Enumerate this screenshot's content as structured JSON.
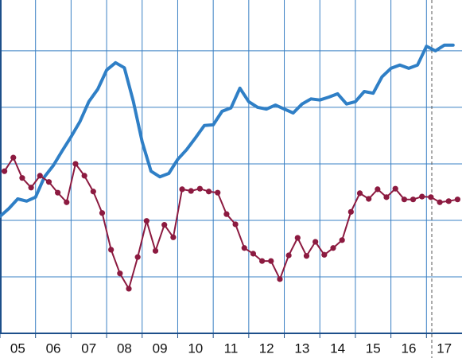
{
  "chart_data": {
    "type": "line",
    "xlim": [
      2005,
      2018
    ],
    "ylim": [
      0,
      5.9
    ],
    "yticks": [
      1,
      2,
      3,
      4,
      5
    ],
    "xticks": [
      {
        "value": 2005,
        "label": "05"
      },
      {
        "value": 2006,
        "label": "06"
      },
      {
        "value": 2007,
        "label": "07"
      },
      {
        "value": 2008,
        "label": "08"
      },
      {
        "value": 2009,
        "label": "09"
      },
      {
        "value": 2010,
        "label": "10"
      },
      {
        "value": 2011,
        "label": "11"
      },
      {
        "value": 2012,
        "label": "12"
      },
      {
        "value": 2013,
        "label": "13"
      },
      {
        "value": 2014,
        "label": "14"
      },
      {
        "value": 2015,
        "label": "15"
      },
      {
        "value": 2016,
        "label": "16"
      },
      {
        "value": 2017,
        "label": "17"
      }
    ],
    "grid": true,
    "grid_color": "#3a80c4",
    "reference_line": {
      "x": 2017.15,
      "style": "dashed",
      "color": "#555555"
    },
    "series": [
      {
        "color": "#2f7fc6",
        "markers": false,
        "width": 4,
        "x": [
          2005,
          2005.25,
          2005.5,
          2005.75,
          2006,
          2006.25,
          2006.5,
          2006.75,
          2007,
          2007.25,
          2007.5,
          2007.75,
          2008,
          2008.25,
          2008.5,
          2008.75,
          2009,
          2009.25,
          2009.5,
          2009.75,
          2010,
          2010.25,
          2010.5,
          2010.75,
          2011,
          2011.25,
          2011.5,
          2011.75,
          2012,
          2012.25,
          2012.5,
          2012.75,
          2013,
          2013.25,
          2013.5,
          2013.75,
          2014,
          2014.25,
          2014.5,
          2014.75,
          2015,
          2015.25,
          2015.5,
          2015.75,
          2016,
          2016.25,
          2016.5,
          2016.75,
          2017,
          2017.25,
          2017.5,
          2017.75
        ],
        "values": [
          2.07,
          2.21,
          2.38,
          2.34,
          2.41,
          2.77,
          2.97,
          3.23,
          3.48,
          3.75,
          4.1,
          4.32,
          4.66,
          4.79,
          4.7,
          4.11,
          3.39,
          2.87,
          2.77,
          2.83,
          3.08,
          3.25,
          3.46,
          3.68,
          3.69,
          3.93,
          3.99,
          4.34,
          4.1,
          4.0,
          3.97,
          4.04,
          3.97,
          3.9,
          4.06,
          4.15,
          4.13,
          4.18,
          4.24,
          4.06,
          4.1,
          4.28,
          4.25,
          4.54,
          4.69,
          4.75,
          4.69,
          4.75,
          5.08,
          5.0,
          5.1,
          5.1
        ]
      },
      {
        "color": "#8c1a40",
        "markers": true,
        "width": 2,
        "x": [
          2005.125,
          2005.375,
          2005.625,
          2005.875,
          2006.125,
          2006.375,
          2006.625,
          2006.875,
          2007.125,
          2007.375,
          2007.625,
          2007.875,
          2008.125,
          2008.375,
          2008.625,
          2008.875,
          2009.125,
          2009.375,
          2009.625,
          2009.875,
          2010.125,
          2010.375,
          2010.625,
          2010.875,
          2011.125,
          2011.375,
          2011.625,
          2011.875,
          2012.125,
          2012.375,
          2012.625,
          2012.875,
          2013.125,
          2013.375,
          2013.625,
          2013.875,
          2014.125,
          2014.375,
          2014.625,
          2014.875,
          2015.125,
          2015.375,
          2015.625,
          2015.875,
          2016.125,
          2016.375,
          2016.625,
          2016.875,
          2017.125,
          2017.375,
          2017.625,
          2017.875
        ],
        "values": [
          2.87,
          3.11,
          2.75,
          2.58,
          2.79,
          2.68,
          2.49,
          2.32,
          3.0,
          2.79,
          2.51,
          2.13,
          1.48,
          1.06,
          0.79,
          1.35,
          1.99,
          1.46,
          1.92,
          1.7,
          2.55,
          2.52,
          2.56,
          2.51,
          2.49,
          2.11,
          1.93,
          1.51,
          1.41,
          1.28,
          1.28,
          0.96,
          1.38,
          1.69,
          1.37,
          1.62,
          1.39,
          1.51,
          1.65,
          2.15,
          2.48,
          2.38,
          2.55,
          2.41,
          2.56,
          2.37,
          2.37,
          2.42,
          2.41,
          2.32,
          2.34,
          2.37
        ]
      }
    ]
  }
}
